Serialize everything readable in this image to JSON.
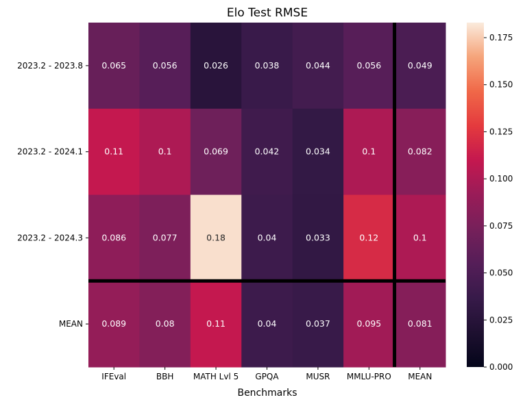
{
  "chart_data": {
    "type": "heatmap",
    "title": "Elo Test RMSE",
    "xlabel": "Benchmarks",
    "ylabel": "",
    "x": [
      "IFEval",
      "BBH",
      "MATH Lvl 5",
      "GPQA",
      "MUSR",
      "MMLU-PRO",
      "MEAN"
    ],
    "y": [
      "2023.2 - 2023.8",
      "2023.2 - 2024.1",
      "2023.2 - 2024.3",
      "MEAN"
    ],
    "values": [
      [
        0.065,
        0.056,
        0.026,
        0.038,
        0.044,
        0.056,
        0.049
      ],
      [
        0.11,
        0.1,
        0.069,
        0.042,
        0.034,
        0.1,
        0.082
      ],
      [
        0.086,
        0.077,
        0.18,
        0.04,
        0.033,
        0.12,
        0.1
      ],
      [
        0.089,
        0.08,
        0.11,
        0.04,
        0.037,
        0.095,
        0.081
      ]
    ],
    "value_labels": [
      [
        "0.065",
        "0.056",
        "0.026",
        "0.038",
        "0.044",
        "0.056",
        "0.049"
      ],
      [
        "0.11",
        "0.1",
        "0.069",
        "0.042",
        "0.034",
        "0.1",
        "0.082"
      ],
      [
        "0.086",
        "0.077",
        "0.18",
        "0.04",
        "0.033",
        "0.12",
        "0.1"
      ],
      [
        "0.089",
        "0.08",
        "0.11",
        "0.04",
        "0.037",
        "0.095",
        "0.081"
      ]
    ],
    "colorscale": "rocket",
    "vmin": 0,
    "vmax": 0.183,
    "colorbar_ticks": [
      "0.000",
      "0.025",
      "0.050",
      "0.075",
      "0.100",
      "0.125",
      "0.150",
      "0.175"
    ],
    "separator_after_column": "MMLU-PRO",
    "separator_after_row": "2023.2 - 2024.3",
    "separator_color": "#000000"
  }
}
